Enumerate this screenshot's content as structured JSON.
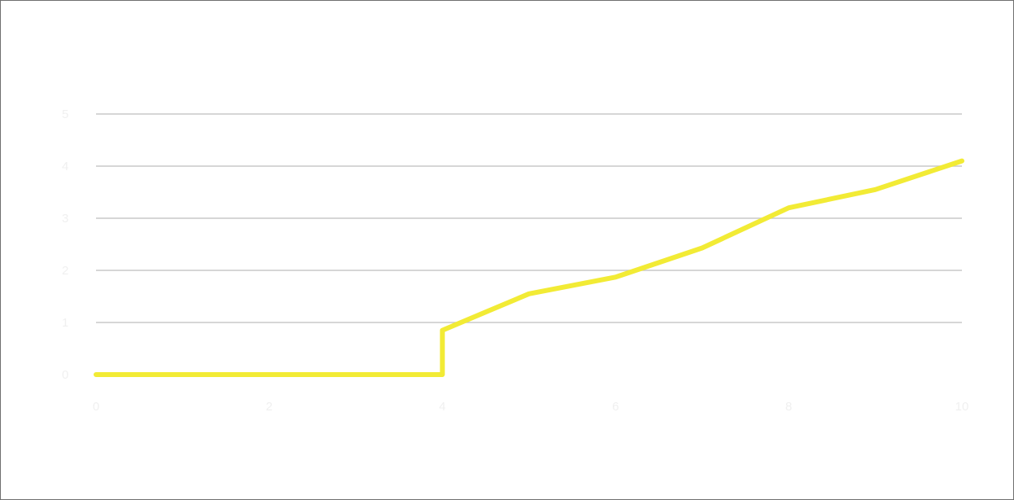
{
  "chart_data": {
    "type": "line",
    "title": "",
    "xlabel": "",
    "ylabel": "",
    "x": [
      0,
      1,
      2,
      3,
      4,
      5,
      6,
      7,
      8,
      9,
      10
    ],
    "xticks": [
      0,
      2,
      4,
      6,
      8,
      10
    ],
    "yticks": [
      0,
      1,
      2,
      3,
      4,
      5
    ],
    "xlim": [
      0,
      10
    ],
    "ylim": [
      0,
      5
    ],
    "grid": "horizontal",
    "legend": "none",
    "series": [
      {
        "color": "#f2eb35",
        "values": [
          0,
          0,
          0,
          0,
          0,
          0.85,
          1.55,
          1.87,
          2.43,
          3.2,
          3.55,
          4.1
        ],
        "x": [
          0,
          1,
          2,
          3,
          4,
          4,
          5,
          6,
          7,
          8,
          9,
          10
        ]
      }
    ]
  }
}
